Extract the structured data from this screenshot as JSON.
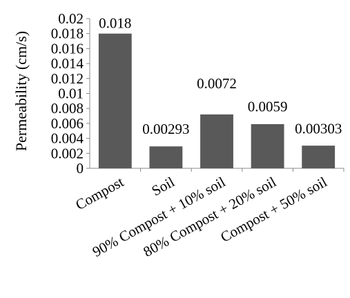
{
  "chart_data": {
    "type": "bar",
    "title": "",
    "xlabel": "",
    "ylabel": "Permeability (cm/s)",
    "categories": [
      "Compost",
      "Soil",
      "90% Compost + 10% soil",
      "80% Compost + 20% soil",
      "Compost + 50% soil"
    ],
    "values": [
      0.018,
      0.00293,
      0.0072,
      0.0059,
      0.00303
    ],
    "data_labels": [
      "0.018",
      "0.00293",
      "0.0072",
      "0.0059",
      "0.00303"
    ],
    "ylim": [
      0,
      0.02
    ],
    "yticks": [
      "0",
      "0.002",
      "0.004",
      "0.006",
      "0.008",
      "0.01",
      "0.012",
      "0.014",
      "0.016",
      "0.018",
      "0.02"
    ],
    "grid": false,
    "legend": "none",
    "bar_color": "#595959"
  }
}
